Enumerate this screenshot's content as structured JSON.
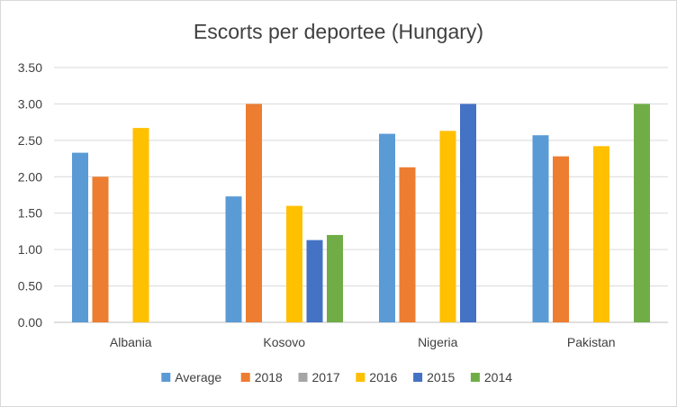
{
  "chart_data": {
    "type": "bar",
    "title": "Escorts per deportee (Hungary)",
    "xlabel": "",
    "ylabel": "",
    "categories": [
      "Albania",
      "Kosovo",
      "Nigeria",
      "Pakistan"
    ],
    "ylim": [
      0,
      3.5
    ],
    "yticks": [
      "0.00",
      "0.50",
      "1.00",
      "1.50",
      "2.00",
      "2.50",
      "3.00",
      "3.50"
    ],
    "grid": true,
    "legend_position": "bottom",
    "series": [
      {
        "name": "Average",
        "color": "#5b9bd5",
        "values": [
          2.33,
          1.73,
          2.59,
          2.57
        ]
      },
      {
        "name": "2018",
        "color": "#ed7d31",
        "values": [
          2.0,
          3.0,
          2.13,
          2.28
        ]
      },
      {
        "name": "2017",
        "color": "#a5a5a5",
        "values": [
          null,
          null,
          null,
          null
        ]
      },
      {
        "name": "2016",
        "color": "#ffc000",
        "values": [
          2.67,
          1.6,
          2.63,
          2.42
        ]
      },
      {
        "name": "2015",
        "color": "#4472c4",
        "values": [
          null,
          1.13,
          3.0,
          null
        ]
      },
      {
        "name": "2014",
        "color": "#70ad47",
        "values": [
          null,
          1.2,
          null,
          3.0
        ]
      }
    ]
  }
}
